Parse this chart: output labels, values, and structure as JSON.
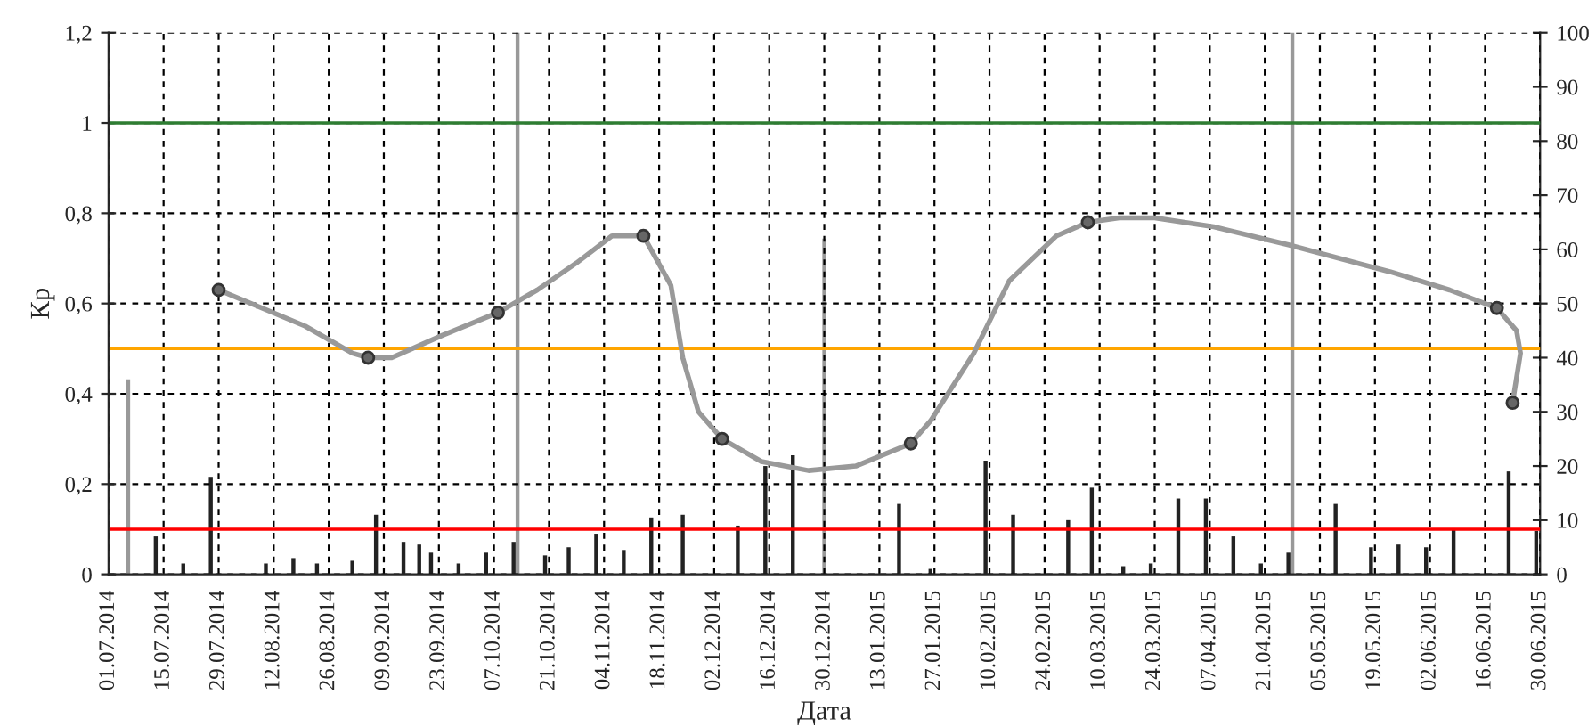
{
  "chart_data": {
    "type": "line",
    "xlabel": "Дата",
    "ylabel": "Кр",
    "xlim": [
      "2014-07-01",
      "2015-06-30"
    ],
    "xticks": [
      {
        "value": "2014-07-01",
        "label": "01.07.2014"
      },
      {
        "value": "2014-07-15",
        "label": "15.07.2014"
      },
      {
        "value": "2014-07-29",
        "label": "29.07.2014"
      },
      {
        "value": "2014-08-12",
        "label": "12.08.2014"
      },
      {
        "value": "2014-08-26",
        "label": "26.08.2014"
      },
      {
        "value": "2014-09-09",
        "label": "09.09.2014"
      },
      {
        "value": "2014-09-23",
        "label": "23.09.2014"
      },
      {
        "value": "2014-10-07",
        "label": "07.10.2014"
      },
      {
        "value": "2014-10-21",
        "label": "21.10.2014"
      },
      {
        "value": "2014-11-04",
        "label": "04.11.2014"
      },
      {
        "value": "2014-11-18",
        "label": "18.11.2014"
      },
      {
        "value": "2014-12-02",
        "label": "02.12.2014"
      },
      {
        "value": "2014-12-16",
        "label": "16.12.2014"
      },
      {
        "value": "2014-12-30",
        "label": "30.12.2014"
      },
      {
        "value": "2015-01-13",
        "label": "13.01.2015"
      },
      {
        "value": "2015-01-27",
        "label": "27.01.2015"
      },
      {
        "value": "2015-02-10",
        "label": "10.02.2015"
      },
      {
        "value": "2015-02-24",
        "label": "24.02.2015"
      },
      {
        "value": "2015-03-10",
        "label": "10.03.2015"
      },
      {
        "value": "2015-03-24",
        "label": "24.03.2015"
      },
      {
        "value": "2015-04-07",
        "label": "07.04.2015"
      },
      {
        "value": "2015-04-21",
        "label": "21.04.2015"
      },
      {
        "value": "2015-05-05",
        "label": "05.05.2015"
      },
      {
        "value": "2015-05-19",
        "label": "19.05.2015"
      },
      {
        "value": "2015-06-02",
        "label": "02.06.2015"
      },
      {
        "value": "2015-06-16",
        "label": "16.06.2015"
      },
      {
        "value": "2015-06-30",
        "label": "30.06.2015"
      }
    ],
    "ylim": [
      0,
      1.2
    ],
    "yticks": [
      0,
      {
        "value": 0.2,
        "label": "0,2"
      },
      {
        "value": 0.4,
        "label": "0,4"
      },
      {
        "value": 0.6,
        "label": "0,6"
      },
      {
        "value": 0.8,
        "label": "0,8"
      },
      1,
      {
        "value": 1.2,
        "label": "1,2"
      }
    ],
    "y2lim": [
      0,
      100
    ],
    "y2ticks": [
      0,
      10,
      20,
      30,
      40,
      50,
      60,
      70,
      80,
      90,
      100
    ],
    "grid": true,
    "ref_lines": [
      {
        "axis": "y",
        "value": 1,
        "color": "#2e7d32"
      },
      {
        "axis": "y",
        "value": 0.5,
        "color": "#ffa500"
      },
      {
        "axis": "y",
        "value": 0.1,
        "color": "#ff0000"
      }
    ],
    "series": [
      {
        "type": "bar",
        "axis": "y2",
        "color": "#222222",
        "x": [
          "2014-07-13",
          "2014-07-20",
          "2014-07-27",
          "2014-08-10",
          "2014-08-17",
          "2014-08-23",
          "2014-09-01",
          "2014-09-07",
          "2014-09-14",
          "2014-09-18",
          "2014-09-21",
          "2014-09-28",
          "2014-10-05",
          "2014-10-12",
          "2014-10-20",
          "2014-10-26",
          "2014-11-02",
          "2014-11-09",
          "2014-11-16",
          "2014-11-24",
          "2014-12-08",
          "2014-12-15",
          "2014-12-22",
          "2015-01-18",
          "2015-01-26",
          "2015-02-09",
          "2015-02-16",
          "2015-03-02",
          "2015-03-08",
          "2015-03-16",
          "2015-03-23",
          "2015-03-30",
          "2015-04-06",
          "2015-04-13",
          "2015-04-20",
          "2015-04-27",
          "2015-05-09",
          "2015-05-18",
          "2015-05-25",
          "2015-06-01",
          "2015-06-08",
          "2015-06-22",
          "2015-06-29"
        ],
        "values": [
          7,
          2,
          18,
          2,
          3,
          2,
          2.5,
          11,
          6,
          5.5,
          4,
          2,
          4,
          6,
          3.5,
          5,
          7.5,
          4.5,
          10.5,
          11,
          9,
          20,
          22,
          13,
          1,
          21,
          11,
          10,
          16,
          1.5,
          2,
          14,
          14,
          7,
          2,
          4,
          13,
          5,
          5.5,
          5,
          8.5,
          19,
          8
        ]
      },
      {
        "type": "bar",
        "axis": "y2",
        "color": "#999999",
        "x": [
          "2014-07-06",
          "2014-10-13",
          "2014-12-30",
          "2015-04-28"
        ],
        "values": [
          36,
          100,
          62,
          100
        ]
      },
      {
        "color": "#999999",
        "marker": "none",
        "line_style": "solid",
        "x": [
          "2014-07-29",
          "2014-08-20",
          "2014-09-01",
          "2014-09-05",
          "2014-09-11",
          "2014-09-24",
          "2014-10-08",
          "2014-10-18",
          "2014-10-28",
          "2014-11-06",
          "2014-11-14",
          "2014-11-21",
          "2014-11-24",
          "2014-11-28",
          "2014-12-04",
          "2014-12-14",
          "2014-12-26",
          "2015-01-07",
          "2015-01-21",
          "2015-01-26",
          "2015-02-06",
          "2015-02-15",
          "2015-02-27",
          "2015-03-07",
          "2015-03-15",
          "2015-03-24",
          "2015-04-08",
          "2015-04-27",
          "2015-05-23",
          "2015-06-07",
          "2015-06-19",
          "2015-06-24",
          "2015-06-25",
          "2015-06-23"
        ],
        "values": [
          0.63,
          0.55,
          0.49,
          0.48,
          0.48,
          0.53,
          0.58,
          0.63,
          0.69,
          0.75,
          0.75,
          0.64,
          0.48,
          0.36,
          0.3,
          0.25,
          0.23,
          0.24,
          0.29,
          0.34,
          0.49,
          0.65,
          0.75,
          0.78,
          0.79,
          0.79,
          0.77,
          0.73,
          0.67,
          0.63,
          0.59,
          0.54,
          0.49,
          0.38
        ]
      },
      {
        "type": "scatter",
        "color": "#666666",
        "marker": "circle",
        "x": [
          "2014-07-29",
          "2014-09-05",
          "2014-10-08",
          "2014-11-14",
          "2014-12-04",
          "2015-01-21",
          "2015-03-07",
          "2015-06-19",
          "2015-06-23"
        ],
        "values": [
          0.63,
          0.48,
          0.58,
          0.75,
          0.3,
          0.29,
          0.78,
          0.59,
          0.38
        ]
      }
    ]
  }
}
